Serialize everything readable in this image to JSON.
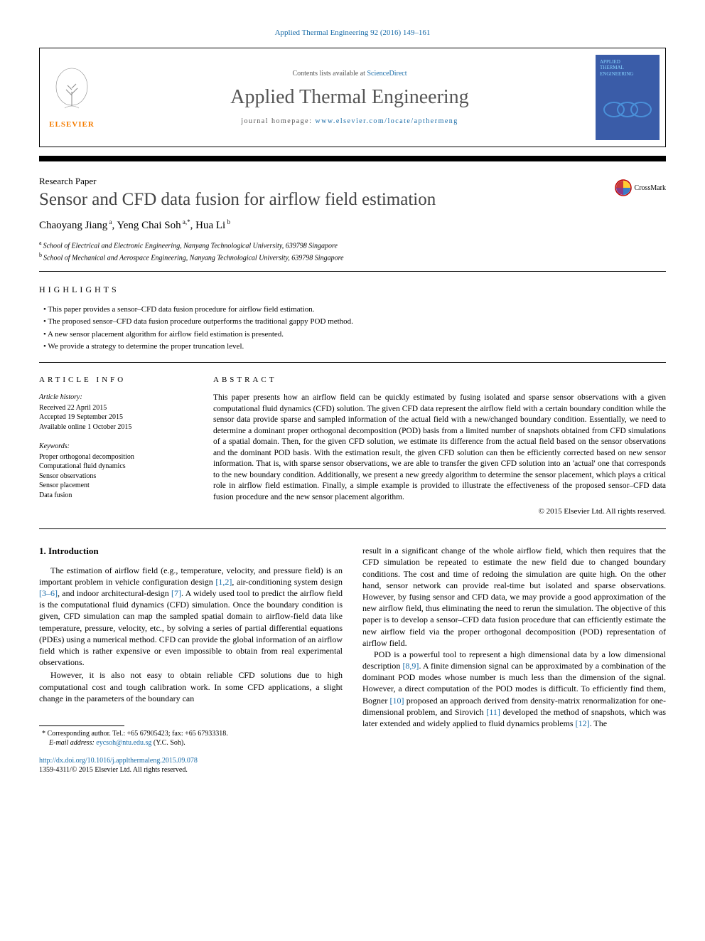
{
  "header": {
    "journal_ref": "Applied Thermal Engineering 92 (2016) 149–161",
    "contents_line_prefix": "Contents lists available at ",
    "contents_line_link": "ScienceDirect",
    "journal_name": "Applied Thermal Engineering",
    "homepage_prefix": "journal homepage: ",
    "homepage_link": "www.elsevier.com/locate/apthermeng",
    "elsevier_text": "ELSEVIER",
    "cover_lines": [
      "APPLIED",
      "THERMAL",
      "ENGINEERING"
    ]
  },
  "crossmark": {
    "label": "CrossMark"
  },
  "paper": {
    "type": "Research Paper",
    "title": "Sensor and CFD data fusion for airflow field estimation",
    "authors_html_parts": [
      {
        "name": "Chaoyang Jiang",
        "aff": "a"
      },
      {
        "name": "Yeng Chai Soh",
        "aff": "a,*"
      },
      {
        "name": "Hua Li",
        "aff": "b"
      }
    ],
    "sep": ", ",
    "affiliations": [
      {
        "sup": "a",
        "text": "School of Electrical and Electronic Engineering, Nanyang Technological University, 639798 Singapore"
      },
      {
        "sup": "b",
        "text": "School of Mechanical and Aerospace Engineering, Nanyang Technological University, 639798 Singapore"
      }
    ]
  },
  "highlights": {
    "header": "HIGHLIGHTS",
    "items": [
      "This paper provides a sensor–CFD data fusion procedure for airflow field estimation.",
      "The proposed sensor–CFD data fusion procedure outperforms the traditional gappy POD method.",
      "A new sensor placement algorithm for airflow field estimation is presented.",
      "We provide a strategy to determine the proper truncation level."
    ]
  },
  "article_info": {
    "header": "ARTICLE INFO",
    "history_header": "Article history:",
    "history": [
      "Received 22 April 2015",
      "Accepted 19 September 2015",
      "Available online 1 October 2015"
    ],
    "keywords_header": "Keywords:",
    "keywords": [
      "Proper orthogonal decomposition",
      "Computational fluid dynamics",
      "Sensor observations",
      "Sensor placement",
      "Data fusion"
    ]
  },
  "abstract": {
    "header": "ABSTRACT",
    "text": "This paper presents how an airflow field can be quickly estimated by fusing isolated and sparse sensor observations with a given computational fluid dynamics (CFD) solution. The given CFD data represent the airflow field with a certain boundary condition while the sensor data provide sparse and sampled information of the actual field with a new/changed boundary condition. Essentially, we need to determine a dominant proper orthogonal decomposition (POD) basis from a limited number of snapshots obtained from CFD simulations of a spatial domain. Then, for the given CFD solution, we estimate its difference from the actual field based on the sensor observations and the dominant POD basis. With the estimation result, the given CFD solution can then be efficiently corrected based on new sensor information. That is, with sparse sensor observations, we are able to transfer the given CFD solution into an 'actual' one that corresponds to the new boundary condition. Additionally, we present a new greedy algorithm to determine the sensor placement, which plays a critical role in airflow field estimation. Finally, a simple example is provided to illustrate the effectiveness of the proposed sensor–CFD data fusion procedure and the new sensor placement algorithm.",
    "copyright": "© 2015 Elsevier Ltd. All rights reserved."
  },
  "body": {
    "heading": "1. Introduction",
    "col1": [
      {
        "type": "para",
        "segments": [
          {
            "t": "text",
            "v": "The estimation of airflow field (e.g., temperature, velocity, and pressure field) is an important problem in vehicle configuration design "
          },
          {
            "t": "cite",
            "v": "[1,2]"
          },
          {
            "t": "text",
            "v": ", air-conditioning system design "
          },
          {
            "t": "cite",
            "v": "[3–6]"
          },
          {
            "t": "text",
            "v": ", and indoor architectural-design "
          },
          {
            "t": "cite",
            "v": "[7]"
          },
          {
            "t": "text",
            "v": ". A widely used tool to predict the airflow field is the computational fluid dynamics (CFD) simulation. Once the boundary condition is given, CFD simulation can map the sampled spatial domain to airflow-field data like temperature, pressure, velocity, etc., by solving a series of partial differential equations (PDEs) using a numerical method. CFD can provide the global information of an airflow field which is rather expensive or even impossible to obtain from real experimental observations."
          }
        ]
      },
      {
        "type": "para",
        "segments": [
          {
            "t": "text",
            "v": "However, it is also not easy to obtain reliable CFD solutions due to high computational cost and tough calibration work. In some CFD applications, a slight change in the parameters of the boundary can"
          }
        ]
      }
    ],
    "col2": [
      {
        "type": "para-noindent",
        "segments": [
          {
            "t": "text",
            "v": "result in a significant change of the whole airflow field, which then requires that the CFD simulation be repeated to estimate the new field due to changed boundary conditions. The cost and time of redoing the simulation are quite high. On the other hand, sensor network can provide real-time but isolated and sparse observations. However, by fusing sensor and CFD data, we may provide a good approximation of the new airflow field, thus eliminating the need to rerun the simulation. The objective of this paper is to develop a sensor–CFD data fusion procedure that can efficiently estimate the new airflow field via the proper orthogonal decomposition (POD) representation of airflow field."
          }
        ]
      },
      {
        "type": "para",
        "segments": [
          {
            "t": "text",
            "v": "POD is a powerful tool to represent a high dimensional data by a low dimensional description "
          },
          {
            "t": "cite",
            "v": "[8,9]"
          },
          {
            "t": "text",
            "v": ". A finite dimension signal can be approximated by a combination of the dominant POD modes whose number is much less than the dimension of the signal. However, a direct computation of the POD modes is difficult. To efficiently find them, Bogner "
          },
          {
            "t": "cite",
            "v": "[10]"
          },
          {
            "t": "text",
            "v": " proposed an approach derived from density-matrix renormalization for one-dimensional problem, and Sirovich "
          },
          {
            "t": "cite",
            "v": "[11]"
          },
          {
            "t": "text",
            "v": " developed the method of snapshots, which was later extended and widely applied to fluid dynamics problems "
          },
          {
            "t": "cite",
            "v": "[12]"
          },
          {
            "t": "text",
            "v": ". The"
          }
        ]
      }
    ]
  },
  "footer": {
    "footnote_star": "*",
    "corresponding": "Corresponding author. Tel.: +65 67905423; fax: +65 67933318.",
    "email_label": "E-mail address:",
    "email": "eycsoh@ntu.edu.sg",
    "email_suffix": "(Y.C. Soh).",
    "doi": "http://dx.doi.org/10.1016/j.applthermaleng.2015.09.078",
    "issn_copyright": "1359-4311/© 2015 Elsevier Ltd. All rights reserved."
  },
  "colors": {
    "link": "#1a6ca8",
    "elsevier_orange": "#f57c00",
    "cover_bg": "#3a5ca8",
    "cover_text": "#87d4ff"
  }
}
